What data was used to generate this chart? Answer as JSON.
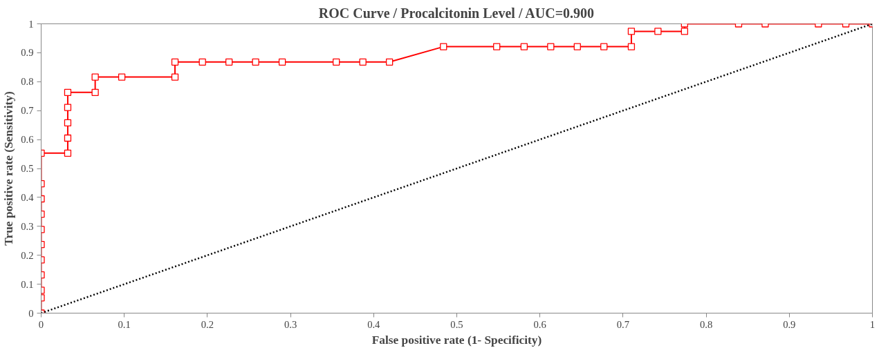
{
  "chart_data": {
    "type": "line",
    "title": "ROC Curve / Procalcitonin Level / AUC=0.900",
    "xlabel": "False positive rate (1- Specificity)",
    "ylabel": "True positive rate (Sensitivity)",
    "xlim": [
      0,
      1
    ],
    "ylim": [
      0,
      1
    ],
    "xticks": [
      0,
      0.1,
      0.2,
      0.3,
      0.4,
      0.5,
      0.6,
      0.7,
      0.8,
      0.9,
      1
    ],
    "yticks": [
      0,
      0.1,
      0.2,
      0.3,
      0.4,
      0.5,
      0.6,
      0.7,
      0.8,
      0.9,
      1
    ],
    "grid": false,
    "series": [
      {
        "color": "#ff0000",
        "marker": "square",
        "line_style": "solid",
        "x": [
          0,
          0,
          0,
          0,
          0,
          0,
          0,
          0,
          0,
          0,
          0,
          0.032,
          0.032,
          0.032,
          0.032,
          0.032,
          0.065,
          0.065,
          0.097,
          0.161,
          0.161,
          0.194,
          0.226,
          0.258,
          0.29,
          0.355,
          0.387,
          0.419,
          0.484,
          0.548,
          0.581,
          0.613,
          0.645,
          0.677,
          0.71,
          0.71,
          0.742,
          0.774,
          0.774,
          0.839,
          0.871,
          0.935,
          0.968,
          1
        ],
        "values": [
          0,
          0.053,
          0.079,
          0.132,
          0.184,
          0.237,
          0.289,
          0.342,
          0.395,
          0.447,
          0.553,
          0.553,
          0.605,
          0.658,
          0.711,
          0.763,
          0.763,
          0.816,
          0.816,
          0.816,
          0.868,
          0.868,
          0.868,
          0.868,
          0.868,
          0.868,
          0.868,
          0.868,
          0.921,
          0.921,
          0.921,
          0.921,
          0.921,
          0.921,
          0.921,
          0.974,
          0.974,
          0.974,
          1,
          1,
          1,
          1,
          1,
          1
        ]
      },
      {
        "color": "#000000",
        "marker": "none",
        "line_style": "dotted",
        "x": [
          0,
          1
        ],
        "values": [
          0,
          1
        ]
      }
    ]
  }
}
